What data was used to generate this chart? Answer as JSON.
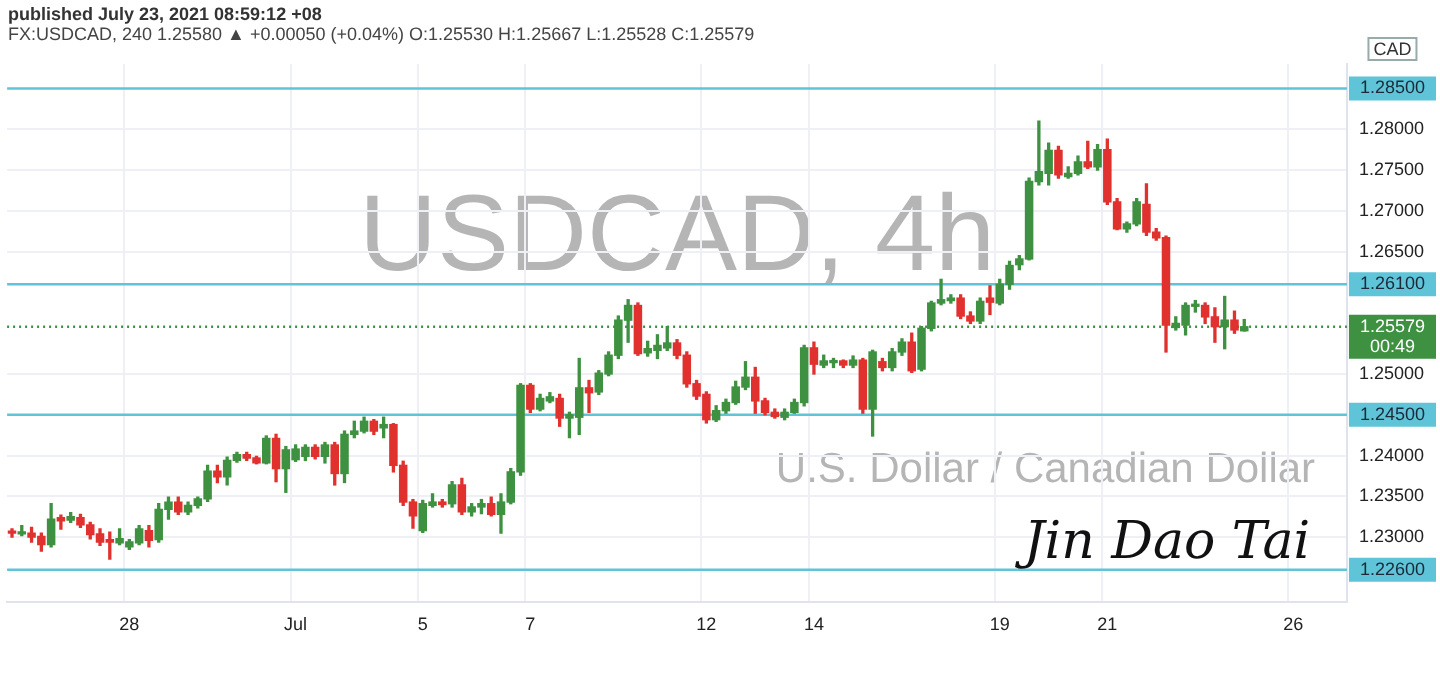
{
  "chart_data": {
    "type": "candlestick",
    "title": "USDCAD, 4h",
    "subtitle": "U.S. Dollar / Canadian Dollar",
    "annotations": [
      "published July 23, 2021 08:59:12 +08",
      "FX:USDCAD, 240 1.25580 ▲ +0.00050 (+0.04%) O:1.25530 H:1.25667 L:1.25528 C:1.25579",
      "CAD",
      "00:49",
      "Jin Dao Tai"
    ],
    "categories": [
      null,
      null,
      null,
      null,
      null,
      null,
      null,
      null,
      null,
      null,
      null,
      null,
      "28",
      null,
      null,
      null,
      null,
      null,
      null,
      null,
      null,
      null,
      null,
      null,
      null,
      null,
      null,
      null,
      null,
      "Jul",
      null,
      null,
      null,
      null,
      null,
      null,
      null,
      null,
      null,
      null,
      null,
      null,
      "5",
      null,
      null,
      null,
      null,
      null,
      null,
      null,
      null,
      null,
      null,
      "7",
      null,
      null,
      null,
      null,
      null,
      null,
      null,
      null,
      null,
      null,
      null,
      null,
      null,
      null,
      null,
      null,
      null,
      "12",
      null,
      null,
      null,
      null,
      null,
      null,
      null,
      null,
      null,
      null,
      "14",
      null,
      null,
      null,
      null,
      null,
      null,
      null,
      null,
      null,
      null,
      null,
      null,
      null,
      null,
      null,
      null,
      null,
      null,
      "19",
      null,
      null,
      null,
      null,
      null,
      null,
      null,
      null,
      null,
      null,
      "21",
      null,
      null,
      null,
      null,
      null,
      null,
      null,
      null,
      null,
      null,
      null,
      null,
      null,
      null,
      null,
      null,
      null,
      null,
      "26",
      null,
      null,
      null,
      null,
      null
    ],
    "ohlc": [
      [
        1.2305,
        1.231,
        1.23,
        1.2305
      ],
      [
        1.2304,
        1.2314,
        1.2302,
        1.2306
      ],
      [
        1.2305,
        1.2312,
        1.2294,
        1.23
      ],
      [
        1.2301,
        1.2305,
        1.2283,
        1.2291
      ],
      [
        1.2291,
        1.2341,
        1.2288,
        1.2322
      ],
      [
        1.2324,
        1.2327,
        1.231,
        1.232
      ],
      [
        1.2321,
        1.233,
        1.2318,
        1.2325
      ],
      [
        1.2324,
        1.2328,
        1.2312,
        1.2315
      ],
      [
        1.2315,
        1.2318,
        1.2298,
        1.2303
      ],
      [
        1.2304,
        1.231,
        1.229,
        1.2294
      ],
      [
        1.2297,
        1.2306,
        1.2273,
        1.2294
      ],
      [
        1.2293,
        1.231,
        1.2291,
        1.2298
      ],
      [
        1.2288,
        1.2297,
        1.2285,
        1.2294
      ],
      [
        1.2293,
        1.2314,
        1.2291,
        1.231
      ],
      [
        1.2308,
        1.2314,
        1.2288,
        1.2296
      ],
      [
        1.2297,
        1.2341,
        1.2294,
        1.2334
      ],
      [
        1.2334,
        1.2349,
        1.2322,
        1.2343
      ],
      [
        1.2343,
        1.2349,
        1.2328,
        1.2331
      ],
      [
        1.2331,
        1.2343,
        1.2328,
        1.2339
      ],
      [
        1.2339,
        1.2349,
        1.2336,
        1.2347
      ],
      [
        1.2347,
        1.2388,
        1.2344,
        1.2381
      ],
      [
        1.2381,
        1.2388,
        1.2367,
        1.2374
      ],
      [
        1.2374,
        1.2398,
        1.2364,
        1.2394
      ],
      [
        1.2394,
        1.2404,
        1.2392,
        1.2401
      ],
      [
        1.2401,
        1.2404,
        1.2394,
        1.2397
      ],
      [
        1.2397,
        1.2399,
        1.239,
        1.2391
      ],
      [
        1.2391,
        1.2424,
        1.239,
        1.2421
      ],
      [
        1.2421,
        1.2426,
        1.2368,
        1.2384
      ],
      [
        1.2384,
        1.2411,
        1.2355,
        1.2407
      ],
      [
        1.2395,
        1.2413,
        1.2393,
        1.2408
      ],
      [
        1.2399,
        1.2413,
        1.2394,
        1.241
      ],
      [
        1.241,
        1.2413,
        1.2396,
        1.2399
      ],
      [
        1.2399,
        1.2416,
        1.2391,
        1.2413
      ],
      [
        1.2413,
        1.2416,
        1.2364,
        1.2378
      ],
      [
        1.2378,
        1.243,
        1.2367,
        1.2426
      ],
      [
        1.2426,
        1.2442,
        1.2422,
        1.243
      ],
      [
        1.243,
        1.2447,
        1.2428,
        1.2442
      ],
      [
        1.2442,
        1.2444,
        1.2426,
        1.243
      ],
      [
        1.2434,
        1.2447,
        1.2422,
        1.2438
      ],
      [
        1.2438,
        1.2439,
        1.238,
        1.2388
      ],
      [
        1.2388,
        1.2393,
        1.2339,
        1.2343
      ],
      [
        1.2343,
        1.2346,
        1.2311,
        1.2326
      ],
      [
        1.2308,
        1.2345,
        1.2306,
        1.2341
      ],
      [
        1.2339,
        1.2353,
        1.2337,
        1.2343
      ],
      [
        1.2343,
        1.2346,
        1.2337,
        1.234
      ],
      [
        1.2341,
        1.2368,
        1.2337,
        1.2364
      ],
      [
        1.2364,
        1.2372,
        1.2328,
        1.2331
      ],
      [
        1.2331,
        1.2341,
        1.2326,
        1.2337
      ],
      [
        1.2337,
        1.2346,
        1.2329,
        1.2341
      ],
      [
        1.2341,
        1.2349,
        1.2326,
        1.2328
      ],
      [
        1.2328,
        1.2353,
        1.2305,
        1.2343
      ],
      [
        1.2343,
        1.2384,
        1.2341,
        1.238
      ],
      [
        1.238,
        1.2488,
        1.2376,
        1.2486
      ],
      [
        1.2486,
        1.2488,
        1.2453,
        1.2457
      ],
      [
        1.2457,
        1.2475,
        1.2455,
        1.247
      ],
      [
        1.2467,
        1.2477,
        1.2465,
        1.2472
      ],
      [
        1.247,
        1.2475,
        1.2436,
        1.2446
      ],
      [
        1.2446,
        1.2453,
        1.2422,
        1.245
      ],
      [
        1.2447,
        1.2519,
        1.2426,
        1.2483
      ],
      [
        1.2483,
        1.2492,
        1.2453,
        1.2477
      ],
      [
        1.2478,
        1.2504,
        1.2475,
        1.2501
      ],
      [
        1.25,
        1.2527,
        1.2498,
        1.2523
      ],
      [
        1.2523,
        1.2571,
        1.2519,
        1.2566
      ],
      [
        1.2566,
        1.2591,
        1.2539,
        1.2584
      ],
      [
        1.2584,
        1.2587,
        1.2523,
        1.2525
      ],
      [
        1.2526,
        1.254,
        1.2522,
        1.2531
      ],
      [
        1.2529,
        1.2548,
        1.2519,
        1.2535
      ],
      [
        1.2532,
        1.2558,
        1.2529,
        1.2538
      ],
      [
        1.2538,
        1.2542,
        1.2519,
        1.2523
      ],
      [
        1.2523,
        1.2527,
        1.2484,
        1.2488
      ],
      [
        1.2488,
        1.2492,
        1.2469,
        1.2473
      ],
      [
        1.2475,
        1.2478,
        1.244,
        1.2444
      ],
      [
        1.2444,
        1.2461,
        1.2442,
        1.2455
      ],
      [
        1.2455,
        1.2469,
        1.2452,
        1.2465
      ],
      [
        1.2465,
        1.2491,
        1.2463,
        1.2484
      ],
      [
        1.2484,
        1.2515,
        1.2481,
        1.2496
      ],
      [
        1.2496,
        1.2508,
        1.2452,
        1.2467
      ],
      [
        1.2467,
        1.247,
        1.245,
        1.2453
      ],
      [
        1.2453,
        1.2457,
        1.2446,
        1.2448
      ],
      [
        1.2447,
        1.2457,
        1.2444,
        1.2453
      ],
      [
        1.2453,
        1.2469,
        1.2452,
        1.2465
      ],
      [
        1.2465,
        1.2535,
        1.2461,
        1.2532
      ],
      [
        1.2532,
        1.2539,
        1.25,
        1.2512
      ],
      [
        1.2511,
        1.2523,
        1.2508,
        1.2516
      ],
      [
        1.2514,
        1.2519,
        1.2508,
        1.2515
      ],
      [
        1.2516,
        1.2517,
        1.2508,
        1.2511
      ],
      [
        1.2511,
        1.2522,
        1.2508,
        1.2517
      ],
      [
        1.2517,
        1.2519,
        1.2452,
        1.2457
      ],
      [
        1.2457,
        1.2529,
        1.2424,
        1.2527
      ],
      [
        1.2515,
        1.2519,
        1.2504,
        1.2508
      ],
      [
        1.2508,
        1.2531,
        1.2504,
        1.2527
      ],
      [
        1.2527,
        1.2543,
        1.2523,
        1.2539
      ],
      [
        1.2539,
        1.255,
        1.2502,
        1.2504
      ],
      [
        1.2506,
        1.2558,
        1.2504,
        1.2556
      ],
      [
        1.2556,
        1.2589,
        1.2553,
        1.2587
      ],
      [
        1.2587,
        1.2616,
        1.2585,
        1.2591
      ],
      [
        1.259,
        1.2597,
        1.2587,
        1.2593
      ],
      [
        1.2593,
        1.2597,
        1.2568,
        1.2571
      ],
      [
        1.2571,
        1.2576,
        1.2562,
        1.2565
      ],
      [
        1.2565,
        1.2593,
        1.2562,
        1.2589
      ],
      [
        1.2593,
        1.2608,
        1.2573,
        1.2588
      ],
      [
        1.2587,
        1.2616,
        1.2585,
        1.261
      ],
      [
        1.261,
        1.2638,
        1.2604,
        1.2633
      ],
      [
        1.2634,
        1.2645,
        1.2628,
        1.2641
      ],
      [
        1.2641,
        1.274,
        1.264,
        1.2736
      ],
      [
        1.2736,
        1.281,
        1.2732,
        1.2748
      ],
      [
        1.2746,
        1.2783,
        1.2732,
        1.2774
      ],
      [
        1.2774,
        1.2779,
        1.274,
        1.2744
      ],
      [
        1.2742,
        1.2754,
        1.274,
        1.2746
      ],
      [
        1.2746,
        1.2767,
        1.2744,
        1.276
      ],
      [
        1.276,
        1.2785,
        1.2752,
        1.2754
      ],
      [
        1.2754,
        1.2781,
        1.275,
        1.2775
      ],
      [
        1.2775,
        1.2788,
        1.2708,
        1.2711
      ],
      [
        1.2711,
        1.2715,
        1.2677,
        1.2678
      ],
      [
        1.2678,
        1.2686,
        1.2674,
        1.2684
      ],
      [
        1.2684,
        1.2715,
        1.2682,
        1.2711
      ],
      [
        1.2708,
        1.2733,
        1.267,
        1.2674
      ],
      [
        1.2674,
        1.2678,
        1.2664,
        1.2667
      ],
      [
        1.2667,
        1.2669,
        1.2527,
        1.256
      ],
      [
        1.2557,
        1.257,
        1.2554,
        1.2562
      ],
      [
        1.256,
        1.2587,
        1.2548,
        1.2584
      ],
      [
        1.2583,
        1.259,
        1.2576,
        1.2585
      ],
      [
        1.2584,
        1.2587,
        1.2562,
        1.257
      ],
      [
        1.257,
        1.2581,
        1.2539,
        1.2558
      ],
      [
        1.2558,
        1.2595,
        1.2531,
        1.2566
      ],
      [
        1.2566,
        1.2577,
        1.255,
        1.2554
      ],
      [
        1.2553,
        1.25667,
        1.25528,
        1.25579
      ],
      null,
      null,
      null,
      null,
      null,
      null,
      null,
      null,
      null,
      null
    ],
    "colors": [
      "#e0312f",
      "#3d9140",
      "#e0312f",
      "#e0312f",
      "#3d9140",
      "#e0312f",
      "#3d9140",
      "#e0312f",
      "#e0312f",
      "#e0312f",
      "#e0312f",
      "#3d9140",
      "#3d9140",
      "#3d9140",
      "#e0312f",
      "#3d9140",
      "#3d9140",
      "#e0312f",
      "#3d9140",
      "#3d9140",
      "#3d9140",
      "#e0312f",
      "#3d9140",
      "#3d9140",
      "#e0312f",
      "#e0312f",
      "#3d9140",
      "#e0312f",
      "#3d9140",
      "#3d9140",
      "#3d9140",
      "#e0312f",
      "#3d9140",
      "#e0312f",
      "#3d9140",
      "#3d9140",
      "#3d9140",
      "#e0312f",
      "#3d9140",
      "#e0312f",
      "#e0312f",
      "#e0312f",
      "#3d9140",
      "#3d9140",
      "#e0312f",
      "#3d9140",
      "#e0312f",
      "#3d9140",
      "#3d9140",
      "#e0312f",
      "#3d9140",
      "#3d9140",
      "#3d9140",
      "#e0312f",
      "#3d9140",
      "#3d9140",
      "#e0312f",
      "#3d9140",
      "#3d9140",
      "#e0312f",
      "#3d9140",
      "#3d9140",
      "#3d9140",
      "#3d9140",
      "#e0312f",
      "#3d9140",
      "#3d9140",
      "#3d9140",
      "#e0312f",
      "#e0312f",
      "#e0312f",
      "#e0312f",
      "#3d9140",
      "#3d9140",
      "#3d9140",
      "#3d9140",
      "#e0312f",
      "#e0312f",
      "#e0312f",
      "#3d9140",
      "#3d9140",
      "#3d9140",
      "#e0312f",
      "#3d9140",
      "#3d9140",
      "#e0312f",
      "#3d9140",
      "#e0312f",
      "#3d9140",
      "#e0312f",
      "#3d9140",
      "#3d9140",
      "#e0312f",
      "#3d9140",
      "#3d9140",
      "#3d9140",
      "#3d9140",
      "#e0312f",
      "#e0312f",
      "#3d9140",
      "#e0312f",
      "#3d9140",
      "#3d9140",
      "#3d9140",
      "#3d9140",
      "#3d9140",
      "#3d9140",
      "#e0312f",
      "#3d9140",
      "#3d9140",
      "#e0312f",
      "#3d9140",
      "#e0312f",
      "#e0312f",
      "#3d9140",
      "#3d9140",
      "#e0312f",
      "#e0312f",
      "#e0312f",
      "#3d9140",
      "#3d9140",
      "#3d9140",
      "#e0312f",
      "#e0312f",
      "#3d9140",
      "#e0312f",
      "#3d9140",
      null,
      null,
      null,
      null,
      null,
      null,
      null,
      null,
      null,
      null
    ],
    "ylim": [
      1.222,
      1.288
    ],
    "yticks": [
      {
        "value": 1.23,
        "label": "1.23000"
      },
      {
        "value": 1.235,
        "label": "1.23500"
      },
      {
        "value": 1.24,
        "label": "1.24000"
      },
      {
        "value": 1.25,
        "label": "1.25000"
      },
      {
        "value": 1.265,
        "label": "1.26500"
      },
      {
        "value": 1.27,
        "label": "1.27000"
      },
      {
        "value": 1.275,
        "label": "1.27500"
      },
      {
        "value": 1.28,
        "label": "1.28000"
      }
    ],
    "ref_lines": [
      {
        "axis": "y",
        "value": 1.285,
        "label": "1.28500",
        "color": "#5fc4d8"
      },
      {
        "axis": "y",
        "value": 1.261,
        "label": "1.26100",
        "color": "#5fc4d8"
      },
      {
        "axis": "y",
        "value": 1.245,
        "label": "1.24500",
        "color": "#5fc4d8"
      },
      {
        "axis": "y",
        "value": 1.226,
        "label": "1.22600",
        "color": "#5fc4d8"
      },
      {
        "axis": "y",
        "value": 1.25579,
        "label": "1.25579",
        "color": "#3d9140",
        "line_style": "dotted"
      }
    ],
    "grid": true,
    "legend": false
  }
}
